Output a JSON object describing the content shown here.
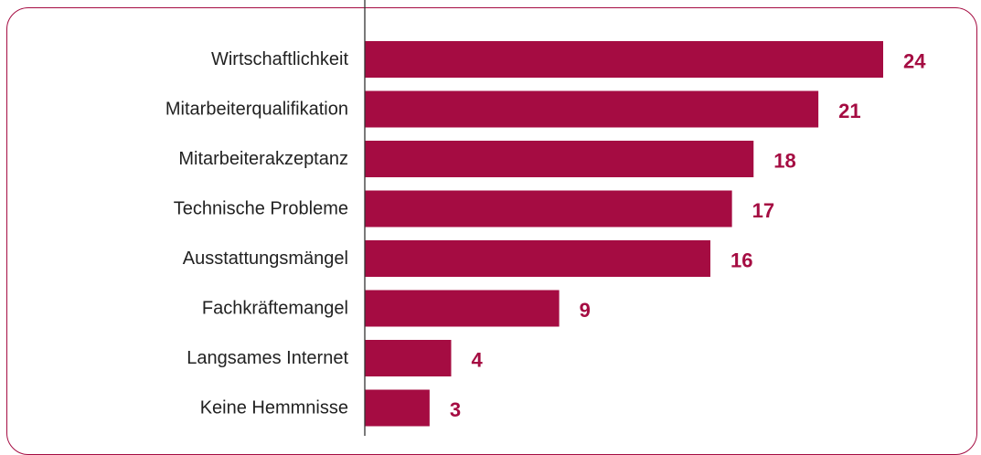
{
  "chart_data": {
    "type": "bar",
    "orientation": "horizontal",
    "categories": [
      "Wirtschaftlichkeit",
      "Mitarbeiterqualifikation",
      "Mitarbeiterakzeptanz",
      "Technische Probleme",
      "Ausstattungsmängel",
      "Fachkräftemangel",
      "Langsames Internet",
      "Keine Hemmnisse"
    ],
    "values": [
      24,
      21,
      18,
      17,
      16,
      9,
      4,
      3
    ],
    "data_labels": [
      "24",
      "21",
      "18",
      "17",
      "16",
      "9",
      "4",
      "3"
    ],
    "xlim": [
      0,
      24
    ],
    "grid": false,
    "legend": "none",
    "title": "",
    "xlabel": "",
    "ylabel": ""
  },
  "colors": {
    "bar": "#a50c42",
    "value_label": "#a50c42",
    "frame": "#a50c42",
    "axis": "#333333",
    "category_label": "#222222"
  }
}
